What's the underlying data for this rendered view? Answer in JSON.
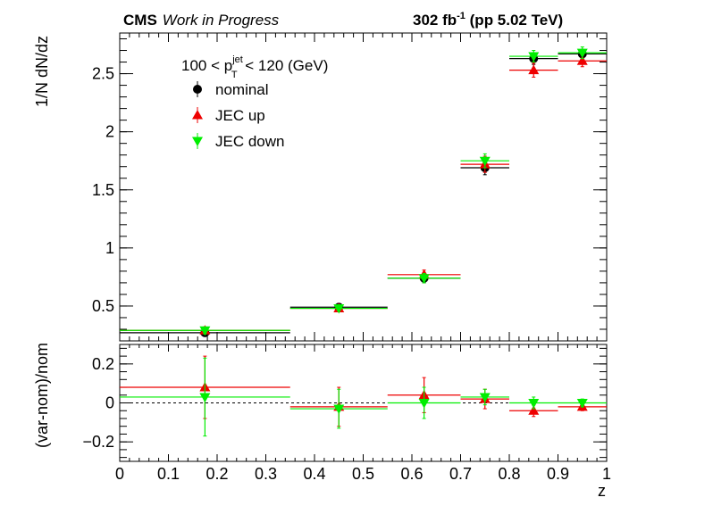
{
  "header": {
    "experiment": "CMS",
    "status": "Work in Progress",
    "lumi_value": "302 fb",
    "lumi_exp": "-1",
    "lumi_rest": " (pp 5.02 TeV)"
  },
  "legend": {
    "title_prefix": "100 < p",
    "title_sup": "jet",
    "title_sub": "T",
    "title_suffix": " < 120 (GeV)"
  },
  "chart_data": [
    {
      "type": "scatter",
      "xlabel": "",
      "ylabel": "1/N dN/dz",
      "xlim": [
        0,
        1
      ],
      "ylim": [
        0.2,
        2.85
      ],
      "yticks": [
        0.5,
        1,
        1.5,
        2,
        2.5
      ],
      "ytick_labels": [
        "0.5",
        "1",
        "1.5",
        "2",
        "2.5"
      ],
      "grid": false,
      "legend_position": "top-left",
      "bins": [
        [
          0,
          0.35
        ],
        [
          0.35,
          0.55
        ],
        [
          0.55,
          0.7
        ],
        [
          0.7,
          0.8
        ],
        [
          0.8,
          0.9
        ],
        [
          0.9,
          1.0
        ]
      ],
      "series": [
        {
          "name": "nominal",
          "color": "#000000",
          "marker": "circle",
          "x": [
            0.175,
            0.45,
            0.625,
            0.75,
            0.85,
            0.95
          ],
          "y": [
            0.27,
            0.49,
            0.74,
            1.69,
            2.63,
            2.67
          ],
          "yerr": [
            0.02,
            0.02,
            0.04,
            0.06,
            0.05,
            0.04
          ]
        },
        {
          "name": "JEC up",
          "color": "#ee0000",
          "marker": "triangle-up",
          "x": [
            0.175,
            0.45,
            0.625,
            0.75,
            0.85,
            0.95
          ],
          "y": [
            0.29,
            0.48,
            0.77,
            1.72,
            2.53,
            2.61
          ],
          "yerr": [
            0.03,
            0.02,
            0.04,
            0.07,
            0.06,
            0.05
          ]
        },
        {
          "name": "JEC down",
          "color": "#00ee00",
          "marker": "triangle-down",
          "x": [
            0.175,
            0.45,
            0.625,
            0.75,
            0.85,
            0.95
          ],
          "y": [
            0.29,
            0.48,
            0.74,
            1.75,
            2.65,
            2.68
          ],
          "yerr": [
            0.03,
            0.02,
            0.04,
            0.06,
            0.05,
            0.05
          ]
        }
      ]
    },
    {
      "type": "scatter",
      "xlabel": "z",
      "ylabel": "(var-nom)/nom",
      "xlim": [
        0,
        1
      ],
      "ylim": [
        -0.3,
        0.3
      ],
      "yticks": [
        -0.2,
        0,
        0.2
      ],
      "ytick_labels": [
        "−0.2",
        "0",
        "0.2"
      ],
      "xticks": [
        0,
        0.1,
        0.2,
        0.3,
        0.4,
        0.5,
        0.6,
        0.7,
        0.8,
        0.9,
        1
      ],
      "xtick_labels": [
        "0",
        "0.1",
        "0.2",
        "0.3",
        "0.4",
        "0.5",
        "0.6",
        "0.7",
        "0.8",
        "0.9",
        "1"
      ],
      "reference_line": 0,
      "grid": false,
      "bins": [
        [
          0,
          0.35
        ],
        [
          0.35,
          0.55
        ],
        [
          0.55,
          0.7
        ],
        [
          0.7,
          0.8
        ],
        [
          0.8,
          0.9
        ],
        [
          0.9,
          1.0
        ]
      ],
      "series": [
        {
          "name": "JEC up",
          "color": "#ee0000",
          "marker": "triangle-up",
          "x": [
            0.175,
            0.45,
            0.625,
            0.75,
            0.85,
            0.95
          ],
          "y": [
            0.08,
            -0.02,
            0.04,
            0.02,
            -0.04,
            -0.02
          ],
          "yerr": [
            0.16,
            0.1,
            0.09,
            0.05,
            0.03,
            0.02
          ]
        },
        {
          "name": "JEC down",
          "color": "#00ee00",
          "marker": "triangle-down",
          "x": [
            0.175,
            0.45,
            0.625,
            0.75,
            0.85,
            0.95
          ],
          "y": [
            0.03,
            -0.03,
            0.0,
            0.03,
            0.0,
            0.0
          ],
          "yerr": [
            0.2,
            0.1,
            0.08,
            0.04,
            0.03,
            0.02
          ]
        }
      ]
    }
  ]
}
